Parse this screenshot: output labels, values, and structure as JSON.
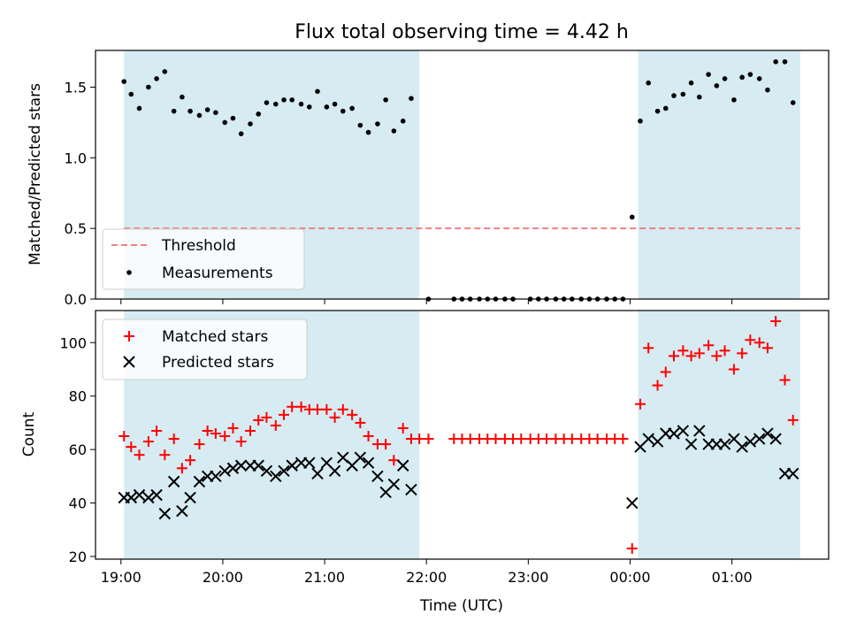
{
  "chart_data": [
    {
      "type": "scatter",
      "title": "Flux total observing time = 4.42 h",
      "ylabel": "Matched/Predicted stars",
      "xlim": [
        18.75,
        25.95
      ],
      "ylim": [
        0.0,
        1.76
      ],
      "xticks": [
        19,
        20,
        21,
        22,
        23,
        24,
        25
      ],
      "yticks": [
        0.0,
        0.5,
        1.0,
        1.5
      ],
      "ytick_labels": [
        "0.0",
        "0.5",
        "1.0",
        "1.5"
      ],
      "legend": {
        "placement": "lower-left",
        "entries": [
          "Threshold",
          "Measurements"
        ]
      },
      "shaded_ranges": [
        [
          19.03,
          21.93
        ],
        [
          24.08,
          25.67
        ]
      ],
      "threshold": {
        "name": "Threshold",
        "value": 0.5,
        "color": "#f08080"
      },
      "series": [
        {
          "name": "Measurements",
          "color": "#000000",
          "points": [
            [
              19.03,
              1.54
            ],
            [
              19.1,
              1.45
            ],
            [
              19.18,
              1.35
            ],
            [
              19.27,
              1.5
            ],
            [
              19.35,
              1.56
            ],
            [
              19.43,
              1.61
            ],
            [
              19.52,
              1.33
            ],
            [
              19.6,
              1.43
            ],
            [
              19.68,
              1.33
            ],
            [
              19.77,
              1.3
            ],
            [
              19.85,
              1.34
            ],
            [
              19.93,
              1.32
            ],
            [
              20.02,
              1.25
            ],
            [
              20.1,
              1.28
            ],
            [
              20.18,
              1.17
            ],
            [
              20.27,
              1.24
            ],
            [
              20.35,
              1.31
            ],
            [
              20.43,
              1.39
            ],
            [
              20.52,
              1.38
            ],
            [
              20.6,
              1.41
            ],
            [
              20.68,
              1.41
            ],
            [
              20.77,
              1.38
            ],
            [
              20.85,
              1.36
            ],
            [
              20.93,
              1.47
            ],
            [
              21.02,
              1.36
            ],
            [
              21.1,
              1.38
            ],
            [
              21.18,
              1.33
            ],
            [
              21.27,
              1.35
            ],
            [
              21.35,
              1.23
            ],
            [
              21.43,
              1.18
            ],
            [
              21.52,
              1.24
            ],
            [
              21.6,
              1.41
            ],
            [
              21.68,
              1.19
            ],
            [
              21.77,
              1.26
            ],
            [
              21.85,
              1.42
            ],
            [
              22.02,
              0.0
            ],
            [
              22.27,
              0.0
            ],
            [
              22.35,
              0.0
            ],
            [
              22.43,
              0.0
            ],
            [
              22.52,
              0.0
            ],
            [
              22.6,
              0.0
            ],
            [
              22.68,
              0.0
            ],
            [
              22.77,
              0.0
            ],
            [
              22.85,
              0.0
            ],
            [
              23.02,
              0.0
            ],
            [
              23.1,
              0.0
            ],
            [
              23.18,
              0.0
            ],
            [
              23.27,
              0.0
            ],
            [
              23.35,
              0.0
            ],
            [
              23.43,
              0.0
            ],
            [
              23.52,
              0.0
            ],
            [
              23.6,
              0.0
            ],
            [
              23.68,
              0.0
            ],
            [
              23.77,
              0.0
            ],
            [
              23.85,
              0.0
            ],
            [
              23.93,
              0.0
            ],
            [
              24.02,
              0.58
            ],
            [
              24.1,
              1.26
            ],
            [
              24.18,
              1.53
            ],
            [
              24.27,
              1.33
            ],
            [
              24.35,
              1.35
            ],
            [
              24.43,
              1.44
            ],
            [
              24.52,
              1.45
            ],
            [
              24.6,
              1.53
            ],
            [
              24.68,
              1.43
            ],
            [
              24.77,
              1.59
            ],
            [
              24.85,
              1.51
            ],
            [
              24.93,
              1.56
            ],
            [
              25.02,
              1.41
            ],
            [
              25.1,
              1.57
            ],
            [
              25.18,
              1.59
            ],
            [
              25.27,
              1.56
            ],
            [
              25.35,
              1.48
            ],
            [
              25.43,
              1.68
            ],
            [
              25.52,
              1.68
            ],
            [
              25.6,
              1.39
            ]
          ]
        }
      ]
    },
    {
      "type": "scatter",
      "ylabel": "Count",
      "xlabel": "Time (UTC)",
      "xlim": [
        18.75,
        25.95
      ],
      "ylim": [
        19,
        112
      ],
      "xticks": [
        19,
        20,
        21,
        22,
        23,
        24,
        25
      ],
      "xtick_labels": [
        "19:00",
        "20:00",
        "21:00",
        "22:00",
        "23:00",
        "00:00",
        "01:00"
      ],
      "yticks": [
        20,
        40,
        60,
        80,
        100
      ],
      "legend": {
        "placement": "upper-left",
        "entries": [
          "Matched stars",
          "Predicted stars"
        ]
      },
      "shaded_ranges": [
        [
          19.03,
          21.93
        ],
        [
          24.08,
          25.67
        ]
      ],
      "series": [
        {
          "name": "Matched stars",
          "marker": "plus",
          "color": "#ff0000",
          "points": [
            [
              19.03,
              65
            ],
            [
              19.1,
              61
            ],
            [
              19.18,
              58
            ],
            [
              19.27,
              63
            ],
            [
              19.35,
              67
            ],
            [
              19.43,
              58
            ],
            [
              19.52,
              64
            ],
            [
              19.6,
              53
            ],
            [
              19.68,
              56
            ],
            [
              19.77,
              62
            ],
            [
              19.85,
              67
            ],
            [
              19.93,
              66
            ],
            [
              20.02,
              65
            ],
            [
              20.1,
              68
            ],
            [
              20.18,
              63
            ],
            [
              20.27,
              67
            ],
            [
              20.35,
              71
            ],
            [
              20.43,
              72
            ],
            [
              20.52,
              69
            ],
            [
              20.6,
              73
            ],
            [
              20.68,
              76
            ],
            [
              20.77,
              76
            ],
            [
              20.85,
              75
            ],
            [
              20.93,
              75
            ],
            [
              21.02,
              75
            ],
            [
              21.1,
              72
            ],
            [
              21.18,
              75
            ],
            [
              21.27,
              73
            ],
            [
              21.35,
              70
            ],
            [
              21.43,
              65
            ],
            [
              21.52,
              62
            ],
            [
              21.6,
              62
            ],
            [
              21.68,
              56
            ],
            [
              21.77,
              68
            ],
            [
              21.85,
              64
            ],
            [
              21.93,
              64
            ],
            [
              22.02,
              64
            ],
            [
              22.27,
              64
            ],
            [
              22.35,
              64
            ],
            [
              22.43,
              64
            ],
            [
              22.52,
              64
            ],
            [
              22.6,
              64
            ],
            [
              22.68,
              64
            ],
            [
              22.77,
              64
            ],
            [
              22.85,
              64
            ],
            [
              22.93,
              64
            ],
            [
              23.02,
              64
            ],
            [
              23.1,
              64
            ],
            [
              23.18,
              64
            ],
            [
              23.27,
              64
            ],
            [
              23.35,
              64
            ],
            [
              23.43,
              64
            ],
            [
              23.52,
              64
            ],
            [
              23.6,
              64
            ],
            [
              23.68,
              64
            ],
            [
              23.77,
              64
            ],
            [
              23.85,
              64
            ],
            [
              23.93,
              64
            ],
            [
              24.02,
              23
            ],
            [
              24.1,
              77
            ],
            [
              24.18,
              98
            ],
            [
              24.27,
              84
            ],
            [
              24.35,
              89
            ],
            [
              24.43,
              95
            ],
            [
              24.52,
              97
            ],
            [
              24.6,
              95
            ],
            [
              24.68,
              96
            ],
            [
              24.77,
              99
            ],
            [
              24.85,
              95
            ],
            [
              24.93,
              97
            ],
            [
              25.02,
              90
            ],
            [
              25.1,
              96
            ],
            [
              25.18,
              101
            ],
            [
              25.27,
              100
            ],
            [
              25.35,
              98
            ],
            [
              25.43,
              108
            ],
            [
              25.52,
              86
            ],
            [
              25.6,
              71
            ]
          ]
        },
        {
          "name": "Predicted stars",
          "marker": "x",
          "color": "#000000",
          "points": [
            [
              19.03,
              42
            ],
            [
              19.1,
              42
            ],
            [
              19.18,
              43
            ],
            [
              19.27,
              42
            ],
            [
              19.35,
              43
            ],
            [
              19.43,
              36
            ],
            [
              19.52,
              48
            ],
            [
              19.6,
              37
            ],
            [
              19.68,
              42
            ],
            [
              19.77,
              48
            ],
            [
              19.85,
              50
            ],
            [
              19.93,
              50
            ],
            [
              20.02,
              52
            ],
            [
              20.1,
              53
            ],
            [
              20.18,
              54
            ],
            [
              20.27,
              54
            ],
            [
              20.35,
              54
            ],
            [
              20.43,
              52
            ],
            [
              20.52,
              50
            ],
            [
              20.6,
              52
            ],
            [
              20.68,
              54
            ],
            [
              20.77,
              55
            ],
            [
              20.85,
              55
            ],
            [
              20.93,
              51
            ],
            [
              21.02,
              55
            ],
            [
              21.1,
              52
            ],
            [
              21.18,
              57
            ],
            [
              21.27,
              54
            ],
            [
              21.35,
              57
            ],
            [
              21.43,
              55
            ],
            [
              21.52,
              50
            ],
            [
              21.6,
              44
            ],
            [
              21.68,
              47
            ],
            [
              21.77,
              54
            ],
            [
              21.85,
              45
            ],
            [
              24.02,
              40
            ],
            [
              24.1,
              61
            ],
            [
              24.18,
              64
            ],
            [
              24.27,
              63
            ],
            [
              24.35,
              66
            ],
            [
              24.43,
              66
            ],
            [
              24.52,
              67
            ],
            [
              24.6,
              62
            ],
            [
              24.68,
              67
            ],
            [
              24.77,
              62
            ],
            [
              24.85,
              62
            ],
            [
              24.93,
              62
            ],
            [
              25.02,
              64
            ],
            [
              25.1,
              61
            ],
            [
              25.18,
              63
            ],
            [
              25.27,
              64
            ],
            [
              25.35,
              66
            ],
            [
              25.43,
              64
            ],
            [
              25.52,
              51
            ],
            [
              25.6,
              51
            ]
          ]
        }
      ]
    }
  ]
}
